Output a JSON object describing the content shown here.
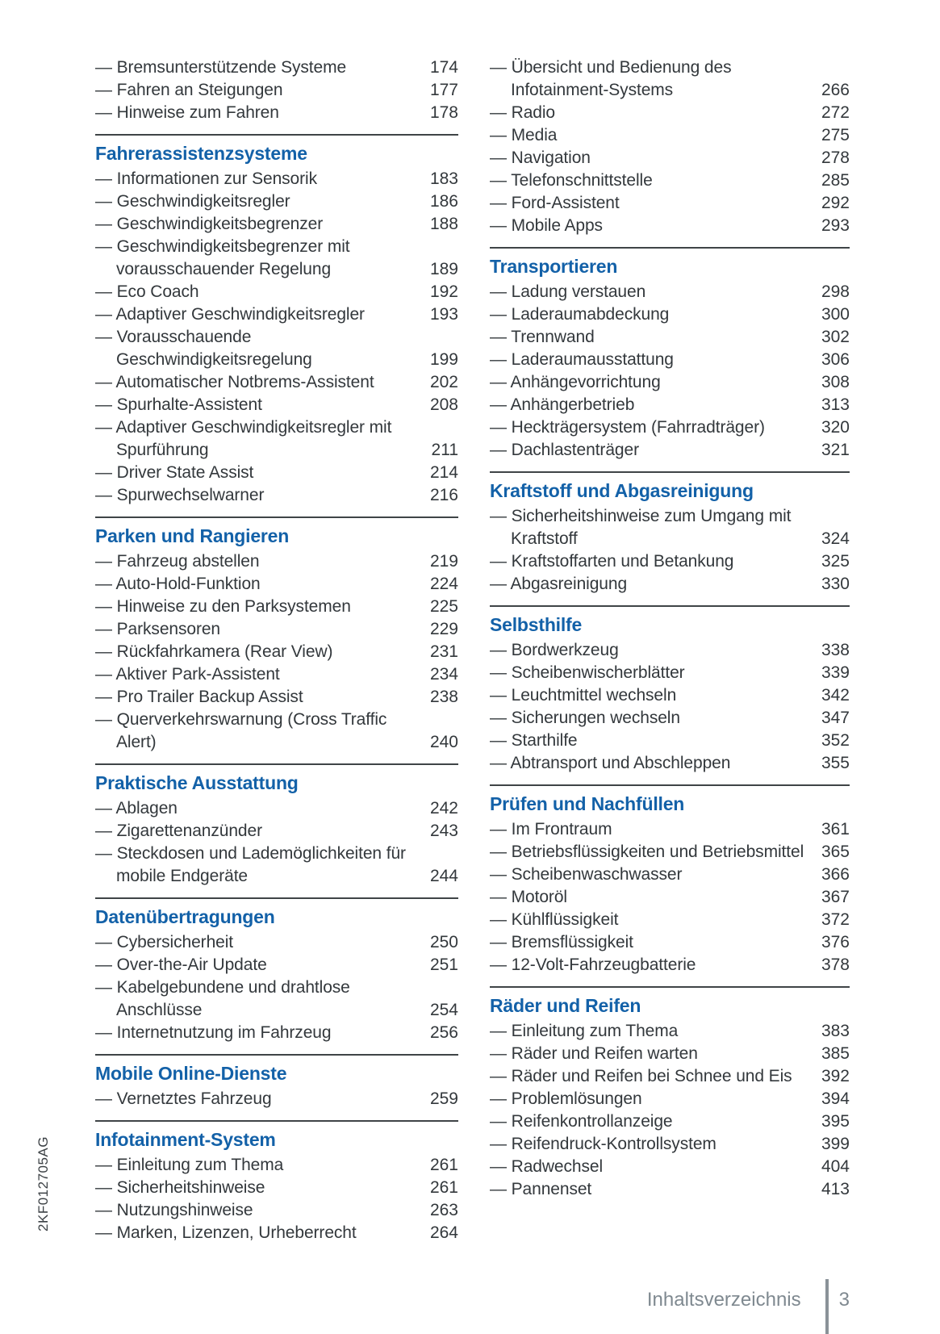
{
  "page": {
    "spine_code": "2KF012705AG",
    "footer": {
      "label": "Inhaltsverzeichnis",
      "page_number": "3"
    },
    "colors": {
      "heading_blue": "#1361a8",
      "body_text": "#33383c",
      "footer_gray": "#7f8990"
    }
  },
  "columns": [
    {
      "sections": [
        {
          "title": "",
          "items": [
            {
              "label": "Bremsunterstützende Systeme",
              "page": "174"
            },
            {
              "label": "Fahren an Steigungen",
              "page": "177"
            },
            {
              "label": "Hinweise zum Fahren",
              "page": "178"
            }
          ]
        },
        {
          "title": "Fahrerassistenzsysteme",
          "items": [
            {
              "label": "Informationen zur Sensorik",
              "page": "183"
            },
            {
              "label": "Geschwindigkeitsregler",
              "page": "186"
            },
            {
              "label": "Geschwindigkeitsbegrenzer",
              "page": "188"
            },
            {
              "label": "Geschwindigkeitsbegrenzer mit vorausschauender Regelung",
              "page": "189"
            },
            {
              "label": "Eco Coach",
              "page": "192"
            },
            {
              "label": "Adaptiver Geschwindigkeitsregler",
              "page": "193"
            },
            {
              "label": "Vorausschauende Geschwindigkeitsregelung",
              "page": "199"
            },
            {
              "label": "Automatischer Notbrems-Assistent",
              "page": "202"
            },
            {
              "label": "Spurhalte-Assistent",
              "page": "208"
            },
            {
              "label": "Adaptiver Geschwindigkeitsregler mit Spurführung",
              "page": "211"
            },
            {
              "label": "Driver State Assist",
              "page": "214"
            },
            {
              "label": "Spurwechselwarner",
              "page": "216"
            }
          ]
        },
        {
          "title": "Parken und Rangieren",
          "items": [
            {
              "label": "Fahrzeug abstellen",
              "page": "219"
            },
            {
              "label": "Auto-Hold-Funktion",
              "page": "224"
            },
            {
              "label": "Hinweise zu den Parksystemen",
              "page": "225"
            },
            {
              "label": "Parksensoren",
              "page": "229"
            },
            {
              "label": "Rückfahrkamera (Rear View)",
              "page": "231"
            },
            {
              "label": "Aktiver Park-Assistent",
              "page": "234"
            },
            {
              "label": "Pro Trailer Backup Assist",
              "page": "238"
            },
            {
              "label": "Querverkehrswarnung (Cross Traffic Alert)",
              "page": "240"
            }
          ]
        },
        {
          "title": "Praktische Ausstattung",
          "items": [
            {
              "label": "Ablagen",
              "page": "242"
            },
            {
              "label": "Zigarettenanzünder",
              "page": "243"
            },
            {
              "label": "Steckdosen und Lademöglichkeiten für mobile Endgeräte",
              "page": "244"
            }
          ]
        },
        {
          "title": "Datenübertragungen",
          "items": [
            {
              "label": "Cybersicherheit",
              "page": "250"
            },
            {
              "label": "Over-the-Air Update",
              "page": "251"
            },
            {
              "label": "Kabelgebundene und drahtlose Anschlüsse",
              "page": "254"
            },
            {
              "label": "Internetnutzung im Fahrzeug",
              "page": "256"
            }
          ]
        },
        {
          "title": "Mobile Online-Dienste",
          "items": [
            {
              "label": "Vernetztes Fahrzeug",
              "page": "259"
            }
          ]
        },
        {
          "title": "Infotainment-System",
          "items": [
            {
              "label": "Einleitung zum Thema",
              "page": "261"
            },
            {
              "label": "Sicherheitshinweise",
              "page": "261"
            },
            {
              "label": "Nutzungshinweise",
              "page": "263"
            },
            {
              "label": "Marken, Lizenzen, Urheberrecht",
              "page": "264"
            }
          ]
        }
      ]
    },
    {
      "sections": [
        {
          "title": "",
          "items": [
            {
              "label": "Übersicht und Bedienung des Infotainment-Systems",
              "page": "266"
            },
            {
              "label": "Radio",
              "page": "272"
            },
            {
              "label": "Media",
              "page": "275"
            },
            {
              "label": "Navigation",
              "page": "278"
            },
            {
              "label": "Telefonschnittstelle",
              "page": "285"
            },
            {
              "label": "Ford-Assistent",
              "page": "292"
            },
            {
              "label": "Mobile Apps",
              "page": "293"
            }
          ]
        },
        {
          "title": "Transportieren",
          "items": [
            {
              "label": "Ladung verstauen",
              "page": "298"
            },
            {
              "label": "Laderaumabdeckung",
              "page": "300"
            },
            {
              "label": "Trennwand",
              "page": "302"
            },
            {
              "label": "Laderaumausstattung",
              "page": "306"
            },
            {
              "label": "Anhängevorrichtung",
              "page": "308"
            },
            {
              "label": "Anhängerbetrieb",
              "page": "313"
            },
            {
              "label": "Heckträgersystem (Fahrradträger)",
              "page": "320"
            },
            {
              "label": "Dachlastenträger",
              "page": "321"
            }
          ]
        },
        {
          "title": "Kraftstoff und Abgasreinigung",
          "items": [
            {
              "label": "Sicherheitshinweise zum Umgang mit Kraftstoff",
              "page": "324"
            },
            {
              "label": "Kraftstoffarten und Betankung",
              "page": "325"
            },
            {
              "label": "Abgasreinigung",
              "page": "330"
            }
          ]
        },
        {
          "title": "Selbsthilfe",
          "items": [
            {
              "label": "Bordwerkzeug",
              "page": "338"
            },
            {
              "label": "Scheibenwischerblätter",
              "page": "339"
            },
            {
              "label": "Leuchtmittel wechseln",
              "page": "342"
            },
            {
              "label": "Sicherungen wechseln",
              "page": "347"
            },
            {
              "label": "Starthilfe",
              "page": "352"
            },
            {
              "label": "Abtransport und Abschleppen",
              "page": "355"
            }
          ]
        },
        {
          "title": "Prüfen und Nachfüllen",
          "items": [
            {
              "label": "Im Frontraum",
              "page": "361"
            },
            {
              "label": "Betriebsflüssigkeiten und Betriebsmittel",
              "page": "365"
            },
            {
              "label": "Scheibenwaschwasser",
              "page": "366"
            },
            {
              "label": "Motoröl",
              "page": "367"
            },
            {
              "label": "Kühlflüssigkeit",
              "page": "372"
            },
            {
              "label": "Bremsflüssigkeit",
              "page": "376"
            },
            {
              "label": "12-Volt-Fahrzeugbatterie",
              "page": "378"
            }
          ]
        },
        {
          "title": "Räder und Reifen",
          "items": [
            {
              "label": "Einleitung zum Thema",
              "page": "383"
            },
            {
              "label": "Räder und Reifen warten",
              "page": "385"
            },
            {
              "label": "Räder und Reifen bei Schnee und Eis",
              "page": "392"
            },
            {
              "label": "Problemlösungen",
              "page": "394"
            },
            {
              "label": "Reifenkontrollanzeige",
              "page": "395"
            },
            {
              "label": "Reifendruck-Kontrollsystem",
              "page": "399"
            },
            {
              "label": "Radwechsel",
              "page": "404"
            },
            {
              "label": "Pannenset",
              "page": "413"
            }
          ]
        }
      ]
    }
  ]
}
